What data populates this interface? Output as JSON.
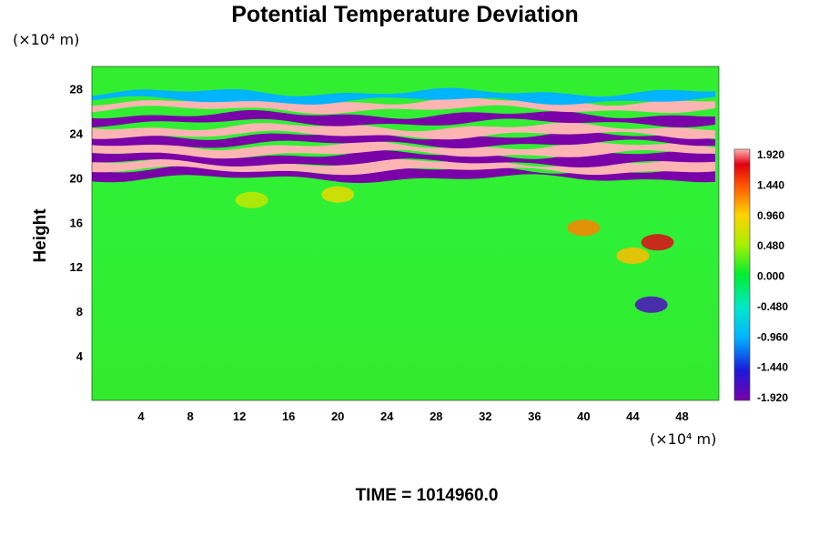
{
  "chart_data": {
    "type": "heatmap",
    "title": "Potential Temperature Deviation",
    "ylabel": "Height",
    "xlabel": "",
    "x_unit": "(×10⁴ m)",
    "y_unit": "(×10⁴ m)",
    "xlim": [
      0,
      51
    ],
    "ylim": [
      0,
      30
    ],
    "x_ticks": [
      4,
      8,
      12,
      16,
      20,
      24,
      28,
      32,
      36,
      40,
      44,
      48
    ],
    "y_ticks": [
      4,
      8,
      12,
      16,
      20,
      24,
      28
    ],
    "colorbar": {
      "min": -1.92,
      "max": 1.92,
      "ticks": [
        "1.920",
        "1.440",
        "0.960",
        "0.480",
        "0.000",
        "-0.480",
        "-0.960",
        "-1.440",
        "-1.920"
      ]
    },
    "footer": "TIME = 1014960.0",
    "bands": [
      {
        "y": 20.3,
        "value": -1.92
      },
      {
        "y": 21.0,
        "value": 1.92
      },
      {
        "y": 21.7,
        "value": -1.92
      },
      {
        "y": 22.5,
        "value": 1.92
      },
      {
        "y": 23.4,
        "value": -1.92
      },
      {
        "y": 24.2,
        "value": 1.92
      },
      {
        "y": 25.3,
        "value": -1.92
      },
      {
        "y": 26.5,
        "value": 1.92
      },
      {
        "y": 27.3,
        "value": -0.96
      }
    ],
    "blobs": [
      {
        "x": 40,
        "y": 15.5,
        "value": 1.2
      },
      {
        "x": 46,
        "y": 14.2,
        "value": 1.7
      },
      {
        "x": 44,
        "y": 13.0,
        "value": 1.0
      },
      {
        "x": 45.5,
        "y": 8.6,
        "value": -1.7
      },
      {
        "x": 13,
        "y": 18,
        "value": 0.6
      },
      {
        "x": 20,
        "y": 18.5,
        "value": 0.8
      }
    ]
  }
}
